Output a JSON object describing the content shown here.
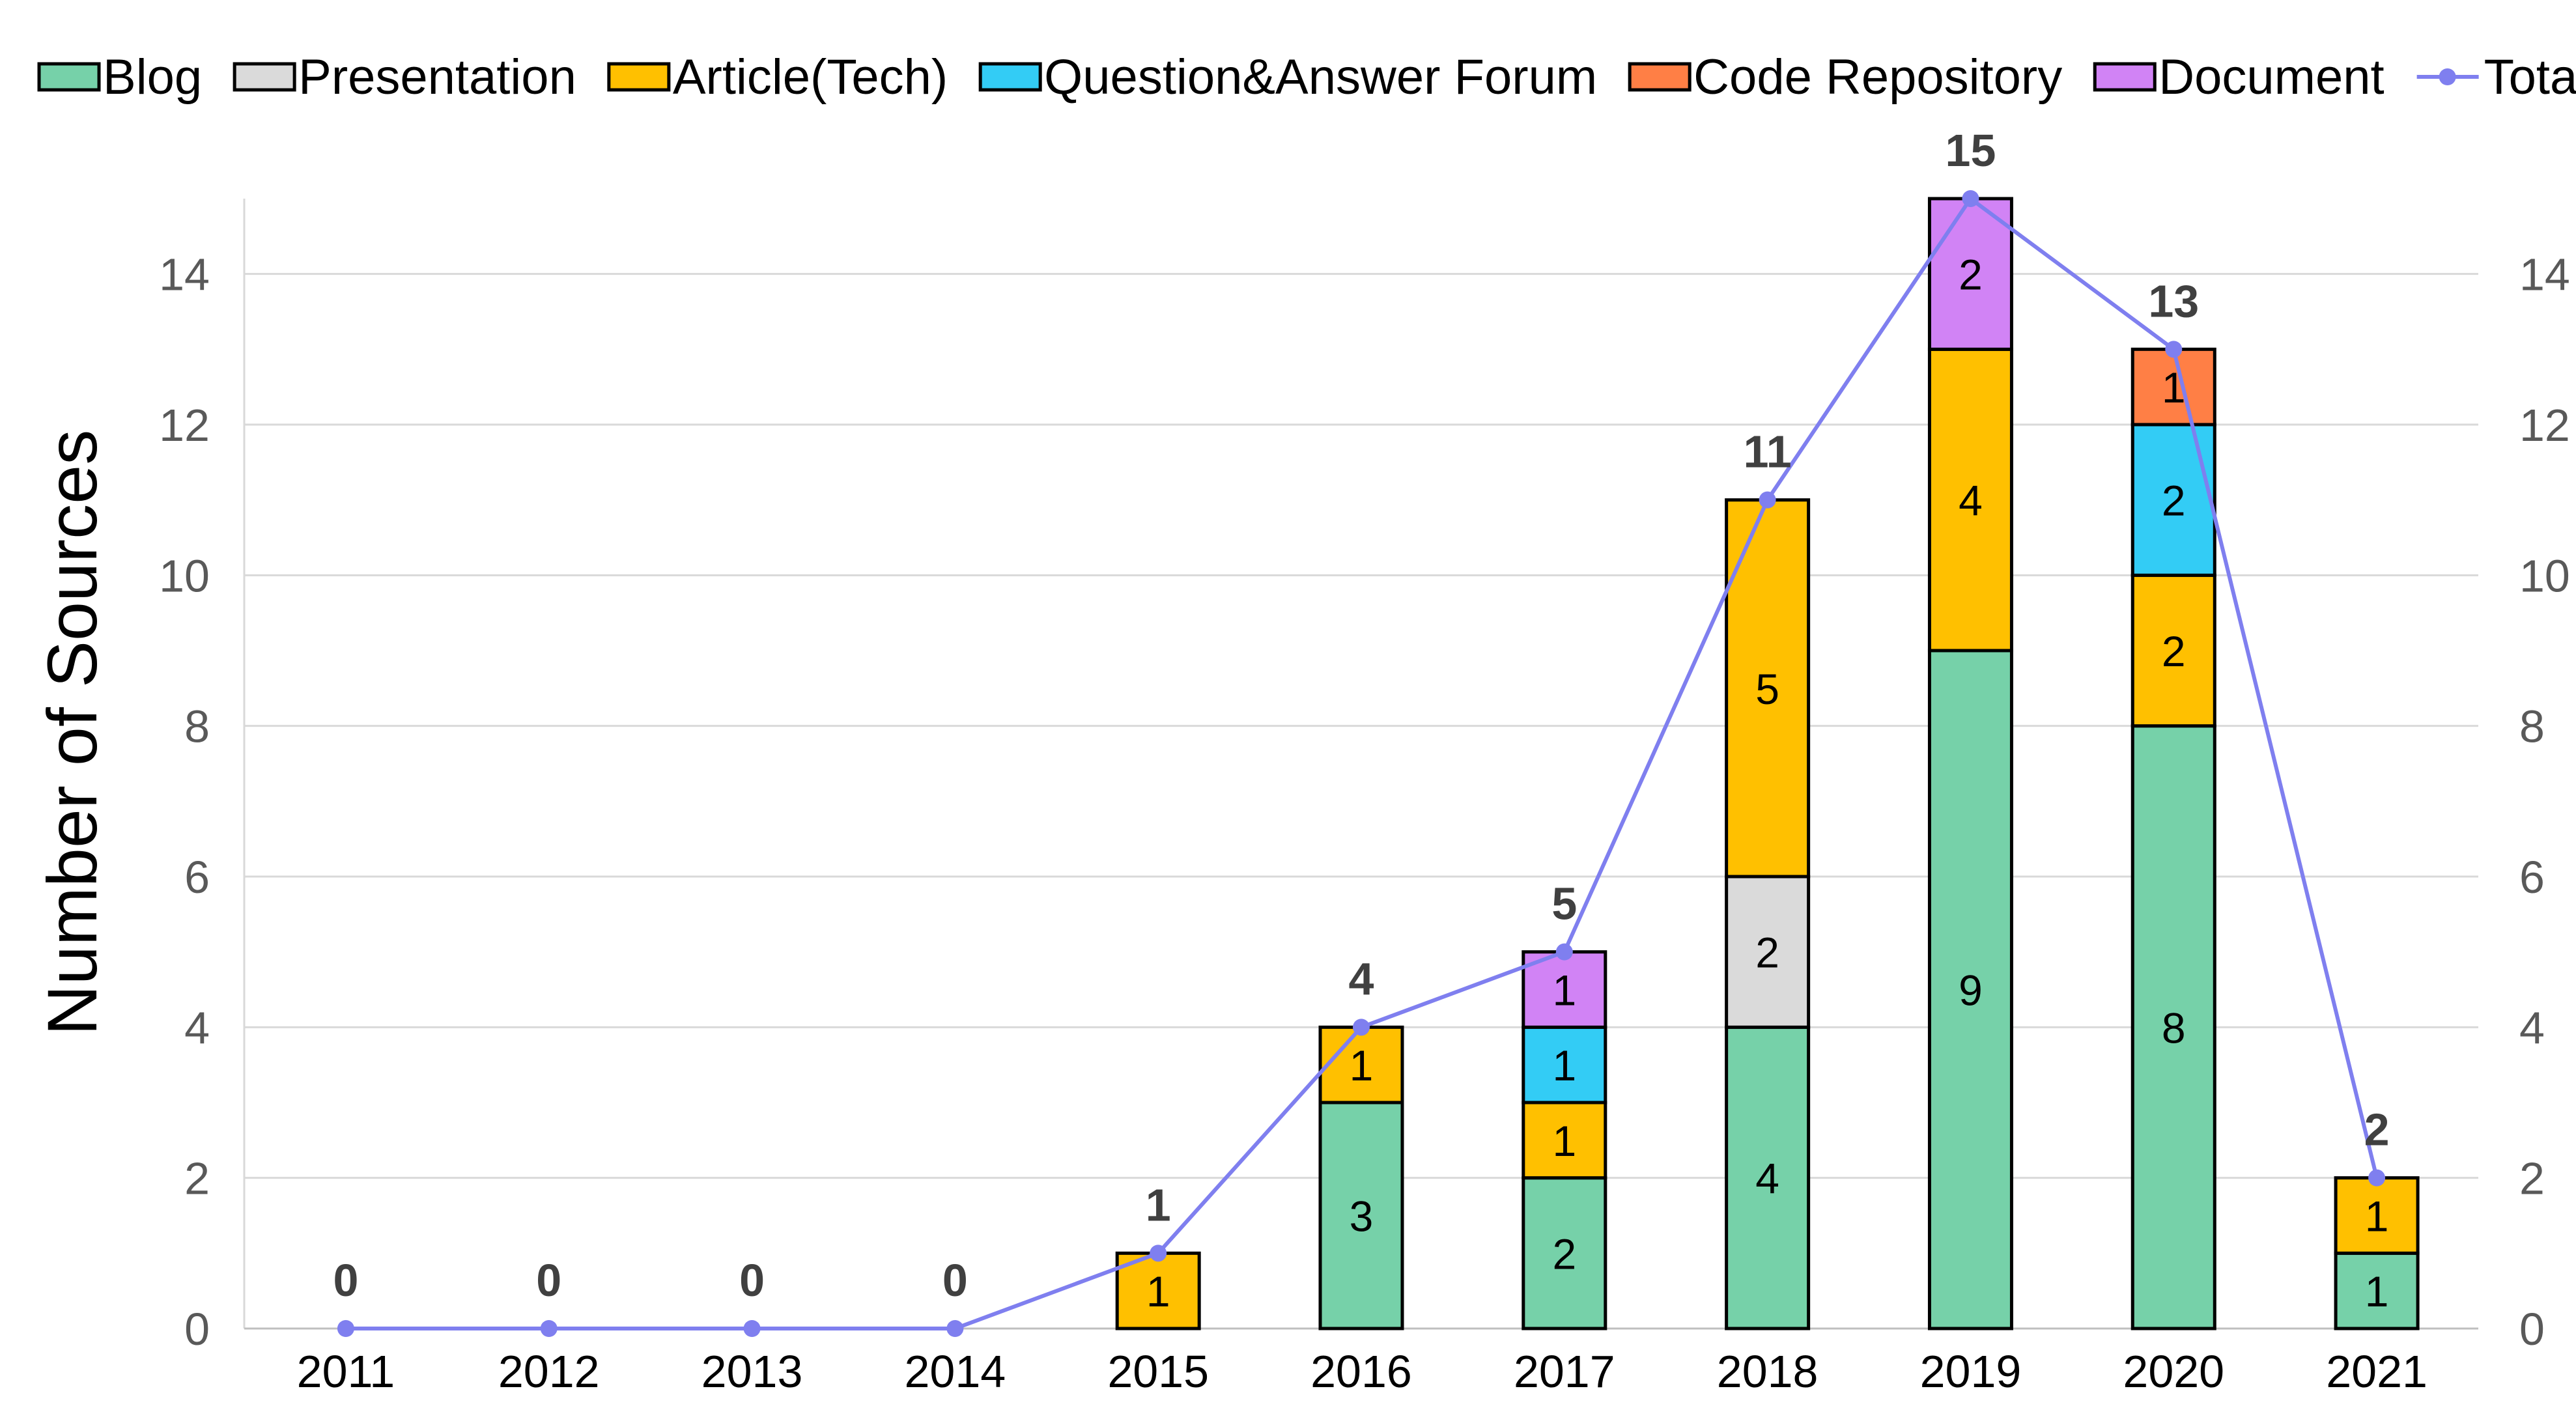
{
  "chart_data": {
    "type": "bar",
    "stacked": true,
    "title": "",
    "xlabel": "",
    "ylabel": "Number of Sources",
    "ylim": [
      0,
      15
    ],
    "yticks": [
      0,
      2,
      4,
      6,
      8,
      10,
      12,
      14
    ],
    "right_axis": true,
    "grid": "horizontal",
    "legend_position": "top",
    "categories": [
      "2011",
      "2012",
      "2013",
      "2014",
      "2015",
      "2016",
      "2017",
      "2018",
      "2019",
      "2020",
      "2021"
    ],
    "series": [
      {
        "name": "Blog",
        "color": "#76D1A9",
        "values": [
          0,
          0,
          0,
          0,
          0,
          3,
          2,
          4,
          9,
          8,
          1
        ]
      },
      {
        "name": "Presentation",
        "color": "#DADADA",
        "values": [
          0,
          0,
          0,
          0,
          0,
          0,
          0,
          2,
          0,
          0,
          0
        ]
      },
      {
        "name": "Article(Tech)",
        "color": "#FFC000",
        "values": [
          0,
          0,
          0,
          0,
          1,
          1,
          1,
          5,
          4,
          2,
          1
        ]
      },
      {
        "name": "Question&Answer Forum",
        "color": "#33CCF5",
        "values": [
          0,
          0,
          0,
          0,
          0,
          0,
          1,
          0,
          0,
          2,
          0
        ]
      },
      {
        "name": "Code Repository",
        "color": "#FF7F45",
        "values": [
          0,
          0,
          0,
          0,
          0,
          0,
          0,
          0,
          0,
          1,
          0
        ]
      },
      {
        "name": "Document",
        "color": "#D183F5",
        "values": [
          0,
          0,
          0,
          0,
          0,
          0,
          1,
          0,
          2,
          0,
          0
        ]
      }
    ],
    "line_series": {
      "name": "Total",
      "color": "#7F7FEF",
      "values": [
        0,
        0,
        0,
        0,
        1,
        4,
        5,
        11,
        15,
        13,
        2
      ]
    }
  }
}
